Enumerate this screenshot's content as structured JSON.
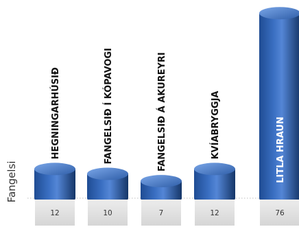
{
  "chart_data": {
    "type": "bar",
    "ylabel": "Fangelsi",
    "categories": [
      "HEGNINGARHÚSIÐ",
      "FANGELSIÐ Í KÓPAVOGI",
      "FANGELSIÐ Á AKUREYRI",
      "KVÍABRYGGJA",
      "LITLA HRAUN"
    ],
    "values": [
      12,
      10,
      7,
      12,
      76
    ],
    "value_labels": [
      "12",
      "10",
      "7",
      "12",
      "76"
    ],
    "highlight_index": 4,
    "colors": {
      "bar_dark": "#1a3f7a",
      "bar_mid": "#3a6fc2",
      "bar_light": "#6f9be0",
      "bar_top": "#4a7fd0",
      "label_dark": "#111111",
      "label_highlight": "#ffffff",
      "value_box": "#e3e3e3",
      "baseline": "#bdbdbd"
    }
  }
}
